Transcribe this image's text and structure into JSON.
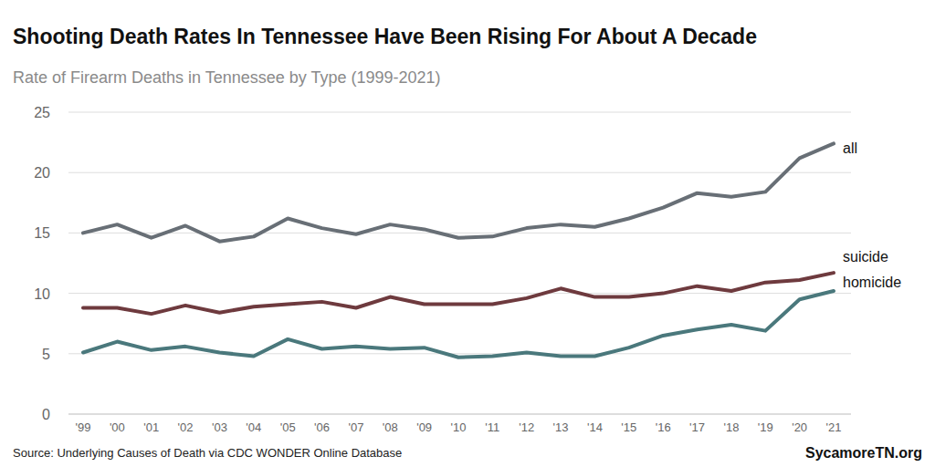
{
  "chart_data": {
    "type": "line",
    "title": "Shooting Death Rates In Tennessee Have Been Rising For About A Decade",
    "subtitle": "Rate of Firearm Deaths in Tennessee by Type (1999-2021)",
    "categories": [
      "'99",
      "'00",
      "'01",
      "'02",
      "'03",
      "'04",
      "'05",
      "'06",
      "'07",
      "'08",
      "'09",
      "'10",
      "'11",
      "'12",
      "'13",
      "'14",
      "'15",
      "'16",
      "'17",
      "'18",
      "'19",
      "'20",
      "'21"
    ],
    "series": [
      {
        "name": "all",
        "color": "#686f76",
        "values": [
          15.0,
          15.7,
          14.6,
          15.6,
          14.3,
          14.7,
          16.2,
          15.4,
          14.9,
          15.7,
          15.3,
          14.6,
          14.7,
          15.4,
          15.7,
          15.5,
          16.2,
          17.1,
          18.3,
          18.0,
          18.4,
          21.2,
          22.4
        ]
      },
      {
        "name": "suicide",
        "color": "#6e3a3e",
        "values": [
          8.8,
          8.8,
          8.3,
          9.0,
          8.4,
          8.9,
          9.1,
          9.3,
          8.8,
          9.7,
          9.1,
          9.1,
          9.1,
          9.6,
          10.4,
          9.7,
          9.7,
          10.0,
          10.6,
          10.2,
          10.9,
          11.1,
          11.7
        ]
      },
      {
        "name": "homicide",
        "color": "#4a787c",
        "values": [
          5.1,
          6.0,
          5.3,
          5.6,
          5.1,
          4.8,
          6.2,
          5.4,
          5.6,
          5.4,
          5.5,
          4.7,
          4.8,
          5.1,
          4.8,
          4.8,
          5.5,
          6.5,
          7.0,
          7.4,
          6.9,
          9.5,
          10.2
        ]
      }
    ],
    "ylim": [
      0,
      25
    ],
    "yticks": [
      0,
      5,
      10,
      15,
      20,
      25
    ],
    "grid": true,
    "annotations": [
      "Source: Underlying Causes of Death via CDC WONDER Online Database",
      "SycamoreTN.org"
    ]
  }
}
